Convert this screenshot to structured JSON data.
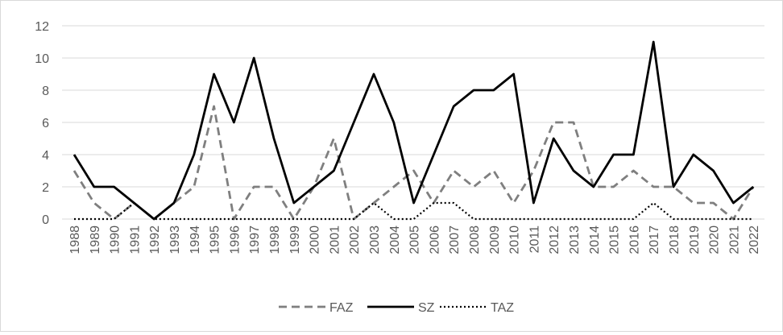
{
  "chart_data": {
    "type": "line",
    "title": "",
    "xlabel": "",
    "ylabel": "",
    "ylim": [
      0,
      12
    ],
    "yticks": [
      0,
      2,
      4,
      6,
      8,
      10,
      12
    ],
    "y_tick_labels": [
      "0",
      "2",
      "4",
      "6",
      "8",
      "10",
      "12"
    ],
    "grid": "horizontal",
    "legend_position": "bottom",
    "categories": [
      "1988",
      "1989",
      "1990",
      "1991",
      "1992",
      "1993",
      "1994",
      "1995",
      "1996",
      "1997",
      "1998",
      "1999",
      "2000",
      "2001",
      "2002",
      "2003",
      "2004",
      "2005",
      "2006",
      "2007",
      "2008",
      "2009",
      "2010",
      "2011",
      "2012",
      "2013",
      "2014",
      "2015",
      "2016",
      "2017",
      "2018",
      "2019",
      "2020",
      "2021",
      "2022"
    ],
    "series": [
      {
        "name": "FAZ",
        "style": "dashed",
        "color": "#7f7f7f",
        "values": [
          3,
          1,
          0,
          1,
          0,
          1,
          2,
          7,
          0,
          2,
          2,
          0,
          2,
          5,
          0,
          1,
          2,
          3,
          1,
          3,
          2,
          3,
          1,
          3,
          6,
          6,
          2,
          2,
          3,
          2,
          2,
          1,
          1,
          0,
          2
        ]
      },
      {
        "name": "SZ",
        "style": "solid",
        "color": "#000000",
        "values": [
          4,
          2,
          2,
          1,
          0,
          1,
          4,
          9,
          6,
          10,
          5,
          1,
          2,
          3,
          6,
          9,
          6,
          1,
          4,
          7,
          8,
          8,
          9,
          1,
          5,
          3,
          2,
          4,
          4,
          11,
          2,
          4,
          3,
          1,
          2
        ]
      },
      {
        "name": "TAZ",
        "style": "dotted",
        "color": "#000000",
        "values": [
          0,
          0,
          0,
          1,
          0,
          0,
          0,
          0,
          0,
          0,
          0,
          0,
          0,
          0,
          0,
          1,
          0,
          0,
          1,
          1,
          0,
          0,
          0,
          0,
          0,
          0,
          0,
          0,
          0,
          1,
          0,
          0,
          0,
          0,
          0
        ]
      }
    ]
  },
  "colors": {
    "grid": "#d9d9d9",
    "axis_text": "#595959"
  }
}
